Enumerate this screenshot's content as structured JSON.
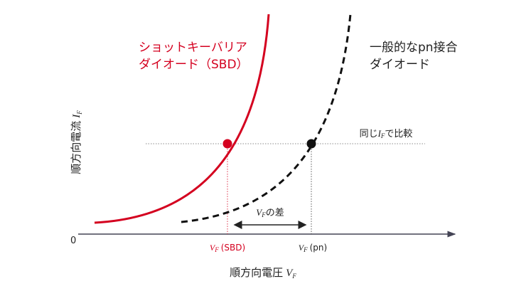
{
  "labels": {
    "sbd_line1": "ショットキーバリア",
    "sbd_line2": "ダイオード（SBD）",
    "pn_line1": "一般的なpn接合",
    "pn_line2": "ダイオード",
    "y_axis": {
      "text": "順方向電流",
      "symbol": "I",
      "subscript": "F"
    },
    "x_axis": {
      "text": "順方向電圧",
      "symbol": "V",
      "subscript": "F"
    },
    "origin": "0",
    "vf_sbd": {
      "symbol": "V",
      "subscript": "F",
      "text": "(SBD)"
    },
    "vf_pn": {
      "symbol": "V",
      "subscript": "F",
      "text": "(pn)"
    },
    "vf_diff": {
      "symbol": "V",
      "subscript": "F",
      "text": "の差"
    },
    "compare": {
      "prefix": "同じ",
      "symbol": "I",
      "subscript": "F",
      "text": "で比較"
    }
  }
}
